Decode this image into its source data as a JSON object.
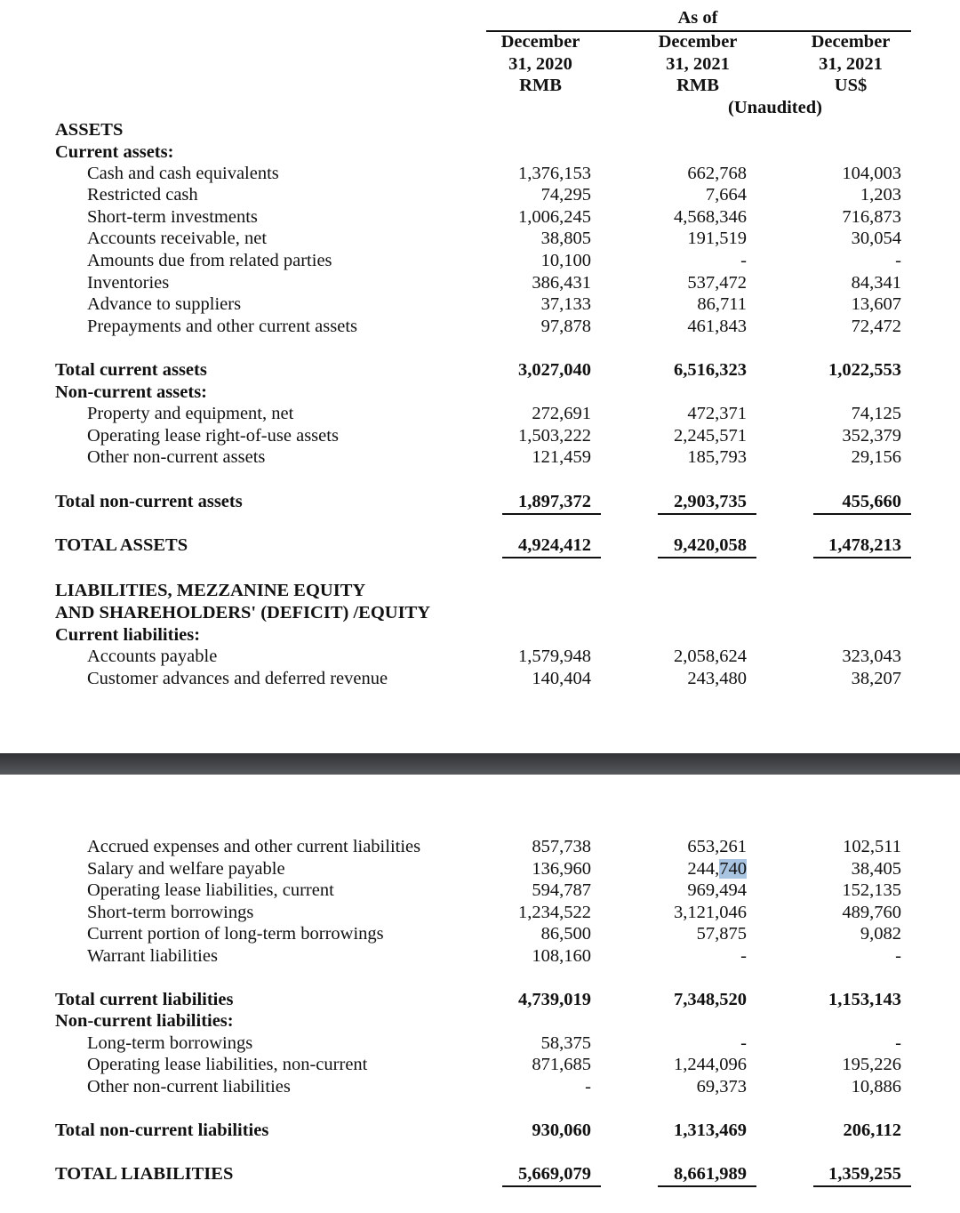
{
  "header": {
    "as_of": "As of",
    "columns": [
      {
        "line1": "December",
        "line2": "31, 2020",
        "line3": "RMB"
      },
      {
        "line1": "December",
        "line2": "31, 2021",
        "line3": "RMB"
      },
      {
        "line1": "December",
        "line2": "31, 2021",
        "line3": "US$"
      }
    ],
    "unaudited": "(Unaudited)"
  },
  "rows": [
    {
      "label": "ASSETS",
      "type": "section"
    },
    {
      "label": "Current assets:",
      "type": "section"
    },
    {
      "label": "Cash and cash equivalents",
      "type": "item",
      "values": [
        "1,376,153",
        "662,768",
        "104,003"
      ]
    },
    {
      "label": "Restricted cash",
      "type": "item",
      "values": [
        "74,295",
        "7,664",
        "1,203"
      ]
    },
    {
      "label": "Short-term investments",
      "type": "item",
      "values": [
        "1,006,245",
        "4,568,346",
        "716,873"
      ]
    },
    {
      "label": "Accounts receivable, net",
      "type": "item",
      "values": [
        "38,805",
        "191,519",
        "30,054"
      ]
    },
    {
      "label": "Amounts due from related parties",
      "type": "item",
      "values": [
        "10,100",
        "-",
        "-"
      ]
    },
    {
      "label": "Inventories",
      "type": "item",
      "values": [
        "386,431",
        "537,472",
        "84,341"
      ]
    },
    {
      "label": "Advance to suppliers",
      "type": "item",
      "values": [
        "37,133",
        "86,711",
        "13,607"
      ]
    },
    {
      "label": "Prepayments and other current assets",
      "type": "item",
      "values": [
        "97,878",
        "461,843",
        "72,472"
      ]
    },
    {
      "label": "Total current assets",
      "type": "total",
      "values": [
        "3,027,040",
        "6,516,323",
        "1,022,553"
      ]
    },
    {
      "label": "Non-current assets:",
      "type": "section"
    },
    {
      "label": "Property and equipment, net",
      "type": "item",
      "values": [
        "272,691",
        "472,371",
        "74,125"
      ]
    },
    {
      "label": "Operating lease right-of-use assets",
      "type": "item",
      "values": [
        "1,503,222",
        "2,245,571",
        "352,379"
      ]
    },
    {
      "label": "Other non-current assets",
      "type": "item",
      "values": [
        "121,459",
        "185,793",
        "29,156"
      ]
    },
    {
      "label": "Total non-current assets",
      "type": "total-underlined",
      "values": [
        "1,897,372",
        "2,903,735",
        "455,660"
      ]
    },
    {
      "label": "TOTAL ASSETS",
      "type": "total-underlined",
      "values": [
        "4,924,412",
        "9,420,058",
        "1,478,213"
      ]
    },
    {
      "label": "LIABILITIES, MEZZANINE EQUITY",
      "type": "section"
    },
    {
      "label": "AND SHAREHOLDERS' (DEFICIT) /EQUITY",
      "type": "section"
    },
    {
      "label": "Current liabilities:",
      "type": "section"
    },
    {
      "label": "Accounts payable",
      "type": "item",
      "values": [
        "1,579,948",
        "2,058,624",
        "323,043"
      ]
    },
    {
      "label": "Customer advances and deferred revenue",
      "type": "item",
      "values": [
        "140,404",
        "243,480",
        "38,207"
      ]
    },
    {
      "label": "Accrued expenses and other current liabilities",
      "type": "item",
      "values": [
        "857,738",
        "653,261",
        "102,511"
      ]
    },
    {
      "label": "Salary and welfare payable",
      "type": "item",
      "values": [
        "136,960",
        "244,740",
        "38,405"
      ],
      "selected_text": "740"
    },
    {
      "label": "Operating lease liabilities, current",
      "type": "item",
      "values": [
        "594,787",
        "969,494",
        "152,135"
      ]
    },
    {
      "label": "Short-term borrowings",
      "type": "item",
      "values": [
        "1,234,522",
        "3,121,046",
        "489,760"
      ]
    },
    {
      "label": "Current portion of long-term borrowings",
      "type": "item",
      "values": [
        "86,500",
        "57,875",
        "9,082"
      ]
    },
    {
      "label": "Warrant liabilities",
      "type": "item",
      "values": [
        "108,160",
        "-",
        "-"
      ]
    },
    {
      "label": "Total current liabilities",
      "type": "total",
      "values": [
        "4,739,019",
        "7,348,520",
        "1,153,143"
      ]
    },
    {
      "label": "Non-current liabilities:",
      "type": "section"
    },
    {
      "label": "Long-term borrowings",
      "type": "item",
      "values": [
        "58,375",
        "-",
        "-"
      ]
    },
    {
      "label": "Operating lease liabilities, non-current",
      "type": "item",
      "values": [
        "871,685",
        "1,244,096",
        "195,226"
      ]
    },
    {
      "label": "Other non-current liabilities",
      "type": "item",
      "values": [
        "-",
        "69,373",
        "10,886"
      ]
    },
    {
      "label": "Total non-current liabilities",
      "type": "total",
      "values": [
        "930,060",
        "1,313,469",
        "206,112"
      ]
    },
    {
      "label": "TOTAL LIABILITIES",
      "type": "total-underlined",
      "values": [
        "5,669,079",
        "8,661,989",
        "1,359,255"
      ]
    }
  ]
}
